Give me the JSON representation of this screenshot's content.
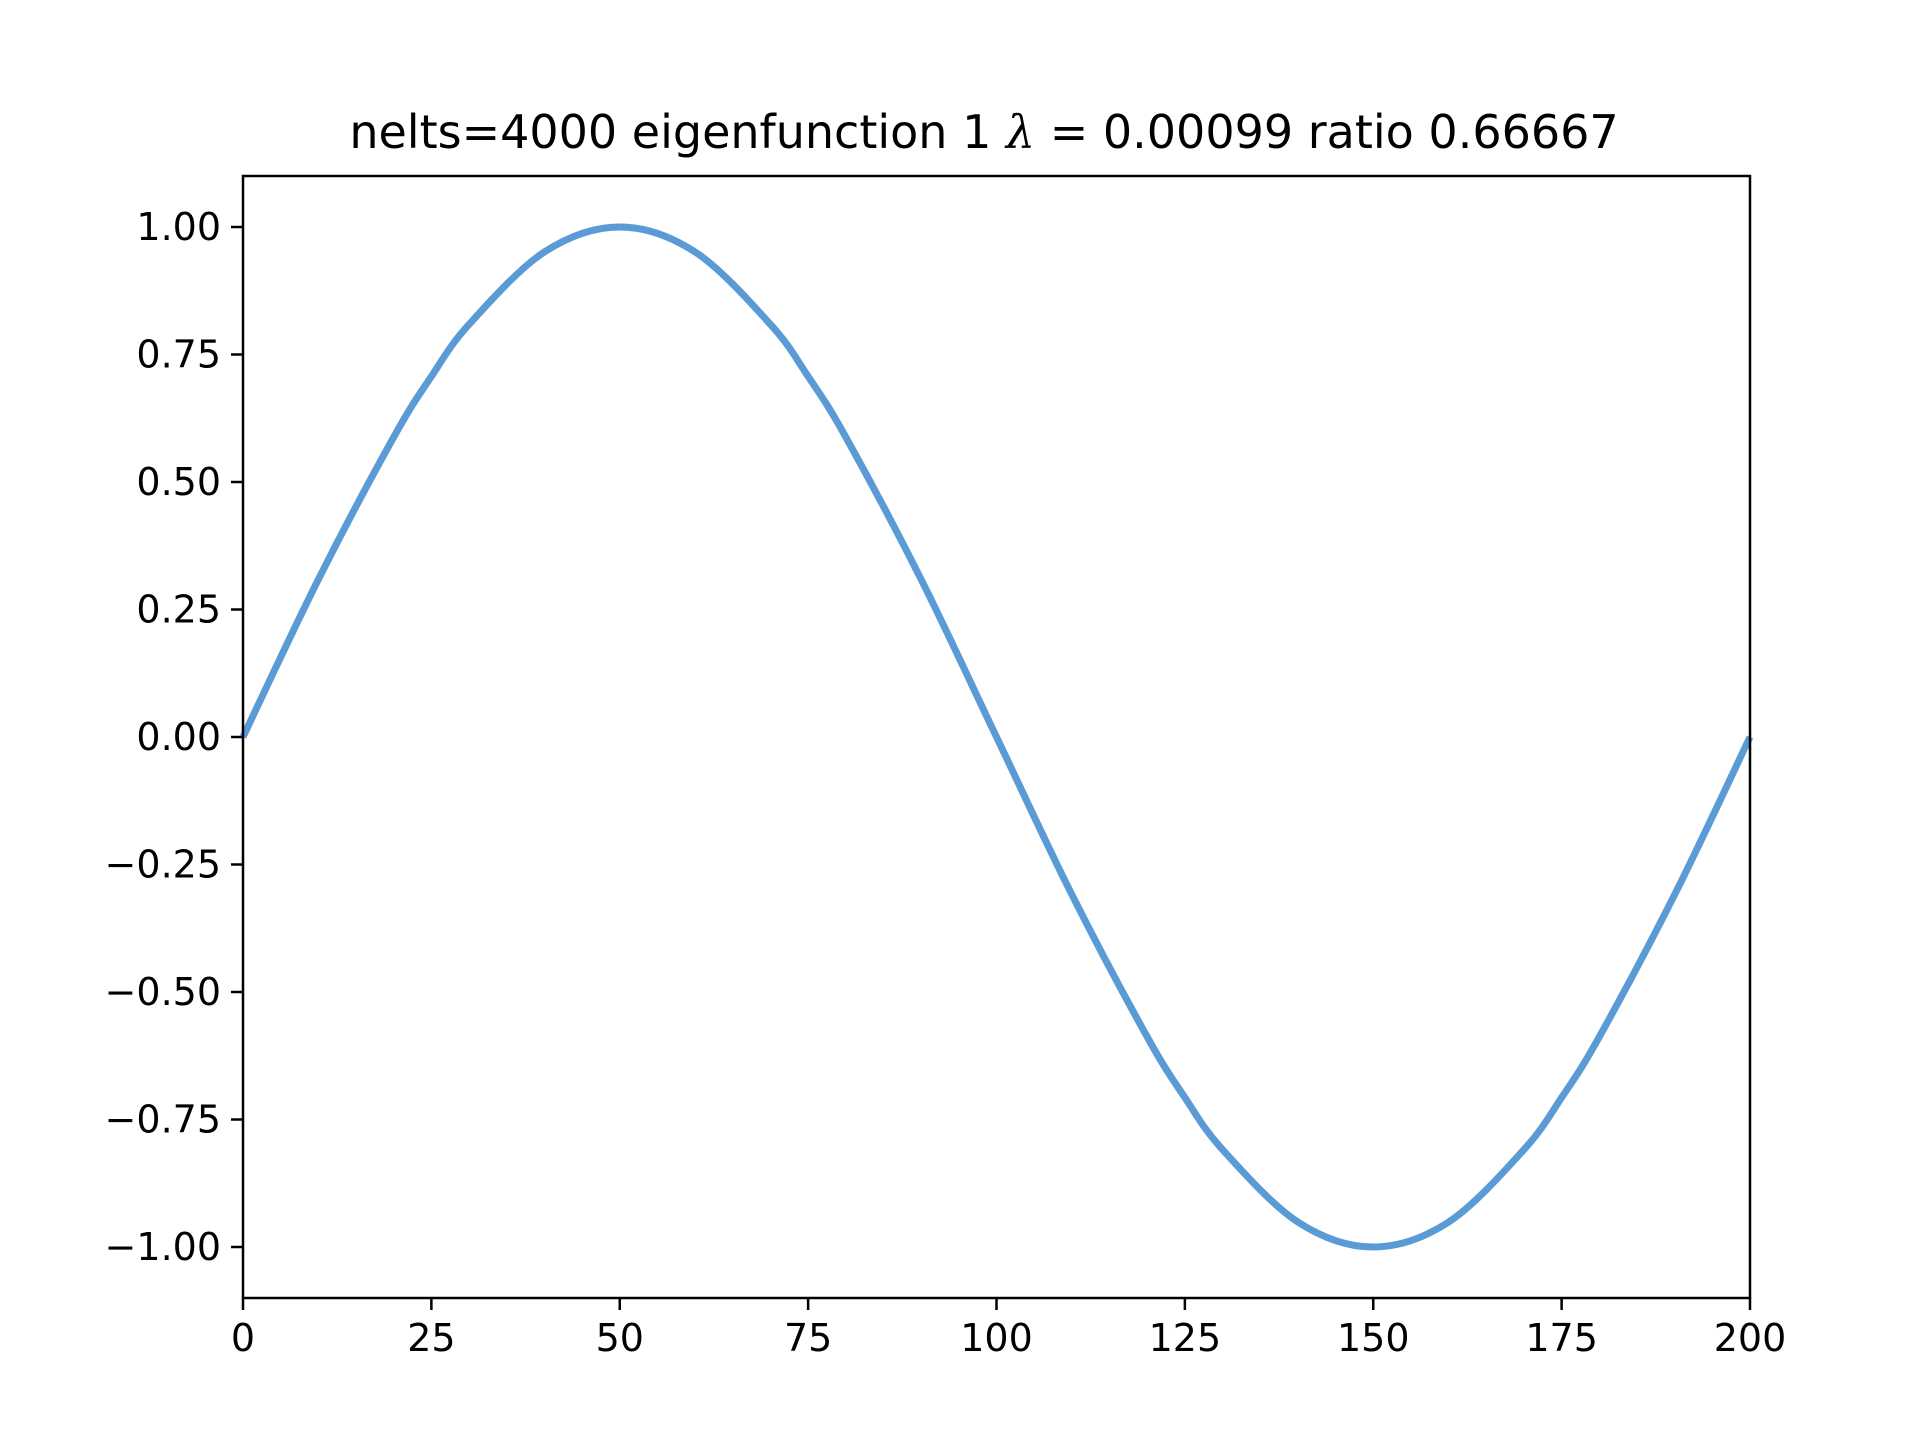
{
  "chart_data": {
    "type": "line",
    "title_parts": {
      "prefix": "nelts=4000  eigenfunction 1  ",
      "symbol": "λ",
      "equals": " = ",
      "suffix": "0.00099 ratio 0.66667"
    },
    "xlabel": "",
    "ylabel": "",
    "xlim": [
      0,
      200
    ],
    "ylim": [
      -1.1,
      1.1
    ],
    "x_ticks": [
      0,
      25,
      50,
      75,
      100,
      125,
      150,
      175,
      200
    ],
    "x_tick_labels": [
      "0",
      "25",
      "50",
      "75",
      "100",
      "125",
      "150",
      "175",
      "200"
    ],
    "y_ticks": [
      1.0,
      0.75,
      0.5,
      0.25,
      0.0,
      -0.25,
      -0.5,
      -0.75,
      -1.0
    ],
    "y_tick_labels": [
      "1.00",
      "0.75",
      "0.50",
      "0.25",
      "0.00",
      "−0.25",
      "−0.50",
      "−0.75",
      "−1.00"
    ],
    "grid": false,
    "series": [
      {
        "color": "#5b9bd5",
        "x": [
          0,
          10,
          20,
          25,
          30,
          40,
          50,
          60,
          70,
          75,
          80,
          90,
          100,
          110,
          120,
          125,
          130,
          140,
          150,
          160,
          170,
          175,
          180,
          190,
          200
        ],
        "values": [
          0.0,
          0.309,
          0.588,
          0.707,
          0.809,
          0.951,
          1.0,
          0.951,
          0.809,
          0.707,
          0.588,
          0.309,
          0.0,
          -0.309,
          -0.588,
          -0.707,
          -0.809,
          -0.951,
          -1.0,
          -0.951,
          -0.809,
          -0.707,
          -0.588,
          -0.309,
          0.0
        ]
      }
    ]
  }
}
